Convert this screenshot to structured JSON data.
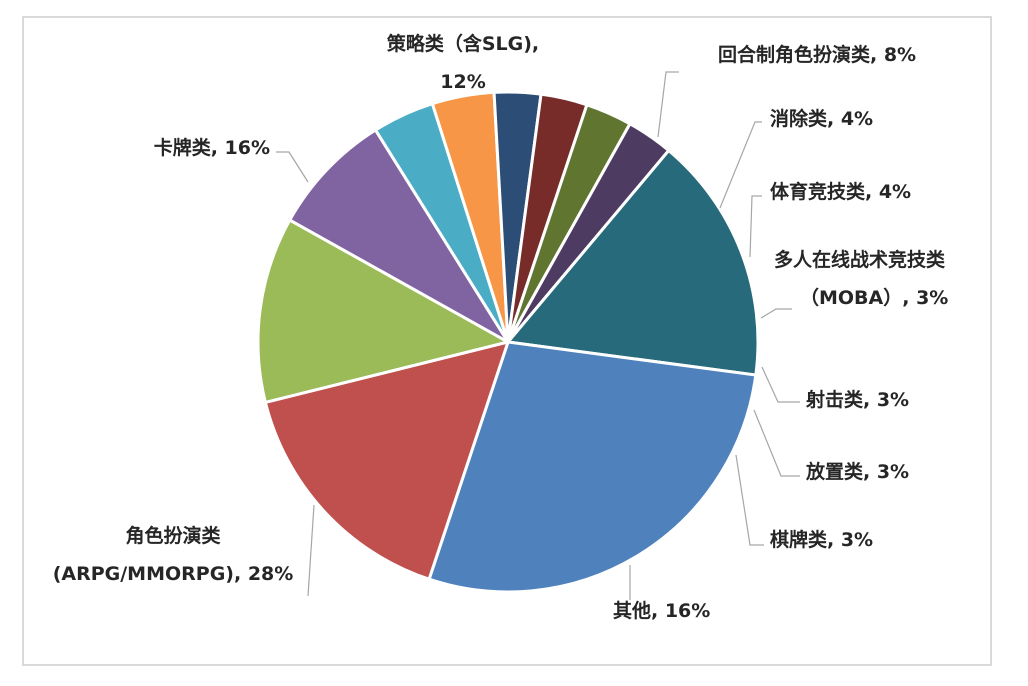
{
  "chart_data": {
    "type": "pie",
    "title": "",
    "slices": [
      {
        "name": "策略类（含SLG)",
        "value": 12,
        "color": "#9bbb59",
        "label_lines": [
          "策略类（含SLG),",
          "12%"
        ]
      },
      {
        "name": "回合制角色扮演类",
        "value": 8,
        "color": "#8064a2",
        "label_lines": [
          "回合制角色扮演类, 8%"
        ]
      },
      {
        "name": "消除类",
        "value": 4,
        "color": "#4bacc6",
        "label_lines": [
          "消除类, 4%"
        ]
      },
      {
        "name": "体育竞技类",
        "value": 4,
        "color": "#f79646",
        "label_lines": [
          "体育竞技类, 4%"
        ]
      },
      {
        "name": "多人在线战术竞技类（MOBA）",
        "value": 3,
        "color": "#2c4d75",
        "label_lines": [
          "多人在线战术竞技类",
          "（MOBA）, 3%"
        ]
      },
      {
        "name": "射击类",
        "value": 3,
        "color": "#772c2a",
        "label_lines": [
          "射击类, 3%"
        ]
      },
      {
        "name": "放置类",
        "value": 3,
        "color": "#5f7530",
        "label_lines": [
          "放置类, 3%"
        ]
      },
      {
        "name": "棋牌类",
        "value": 3,
        "color": "#4d3b62",
        "label_lines": [
          "棋牌类, 3%"
        ]
      },
      {
        "name": "其他",
        "value": 16,
        "color": "#276a7c",
        "label_lines": [
          "其他, 16%"
        ]
      },
      {
        "name": "角色扮演类 (ARPG/MMORPG)",
        "value": 28,
        "color": "#4f81bd",
        "label_lines": [
          "角色扮演类",
          "(ARPG/MMORPG), 28%"
        ]
      },
      {
        "name": "卡牌类",
        "value": 16,
        "color": "#c0504d",
        "label_lines": [
          "卡牌类, 16%"
        ]
      }
    ],
    "start_angle": "approx. 10 o'clock position, clockwise",
    "data_labels": "outside with leader lines",
    "legend": "none"
  }
}
